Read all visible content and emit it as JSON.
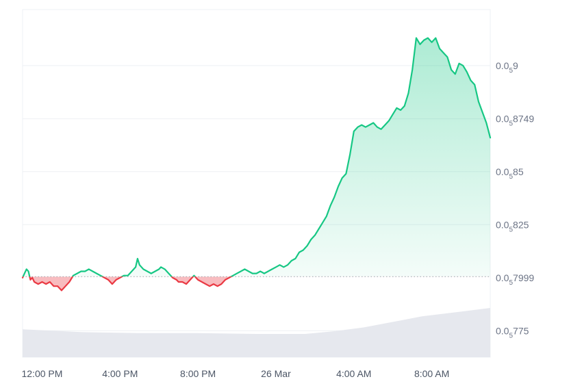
{
  "chart_data": {
    "type": "line",
    "baseline": 0.8005,
    "ylim": [
      0.7625,
      0.9264
    ],
    "xlim": [
      11.0,
      35.0
    ],
    "y_ticks": [
      {
        "value": 0.775,
        "lead": "0.0",
        "sub": "5",
        "tail": "775"
      },
      {
        "value": 0.7999,
        "lead": "0.0",
        "sub": "5",
        "tail": "7999"
      },
      {
        "value": 0.825,
        "lead": "0.0",
        "sub": "5",
        "tail": "825"
      },
      {
        "value": 0.85,
        "lead": "0.0",
        "sub": "5",
        "tail": "85"
      },
      {
        "value": 0.8749,
        "lead": "0.0",
        "sub": "5",
        "tail": "8749"
      },
      {
        "value": 0.9,
        "lead": "0.0",
        "sub": "5",
        "tail": "9"
      }
    ],
    "x_ticks": [
      {
        "label": "12:00 PM",
        "hour": 12
      },
      {
        "label": "4:00 PM",
        "hour": 16
      },
      {
        "label": "8:00 PM",
        "hour": 20
      },
      {
        "label": "26 Mar",
        "hour": 24
      },
      {
        "label": "4:00 AM",
        "hour": 28
      },
      {
        "label": "8:00 AM",
        "hour": 32
      }
    ],
    "x_unit": "hours (11 = 11:00 AM on 25 Mar, 24 = 26 Mar 00:00)",
    "price": [
      [
        11.0,
        0.8
      ],
      [
        11.1,
        0.802
      ],
      [
        11.2,
        0.804
      ],
      [
        11.3,
        0.803
      ],
      [
        11.4,
        0.799
      ],
      [
        11.5,
        0.8
      ],
      [
        11.6,
        0.798
      ],
      [
        11.8,
        0.797
      ],
      [
        12.0,
        0.798
      ],
      [
        12.2,
        0.797
      ],
      [
        12.4,
        0.798
      ],
      [
        12.6,
        0.796
      ],
      [
        12.8,
        0.796
      ],
      [
        13.0,
        0.794
      ],
      [
        13.1,
        0.795
      ],
      [
        13.2,
        0.796
      ],
      [
        13.4,
        0.798
      ],
      [
        13.6,
        0.801
      ],
      [
        13.8,
        0.802
      ],
      [
        14.0,
        0.803
      ],
      [
        14.2,
        0.803
      ],
      [
        14.4,
        0.804
      ],
      [
        14.6,
        0.803
      ],
      [
        14.8,
        0.802
      ],
      [
        15.0,
        0.801
      ],
      [
        15.2,
        0.8
      ],
      [
        15.4,
        0.799
      ],
      [
        15.6,
        0.797
      ],
      [
        15.8,
        0.799
      ],
      [
        16.0,
        0.8
      ],
      [
        16.2,
        0.801
      ],
      [
        16.4,
        0.801
      ],
      [
        16.6,
        0.803
      ],
      [
        16.8,
        0.805
      ],
      [
        16.9,
        0.809
      ],
      [
        17.0,
        0.806
      ],
      [
        17.2,
        0.804
      ],
      [
        17.4,
        0.803
      ],
      [
        17.6,
        0.802
      ],
      [
        17.8,
        0.803
      ],
      [
        18.0,
        0.804
      ],
      [
        18.1,
        0.805
      ],
      [
        18.3,
        0.804
      ],
      [
        18.5,
        0.802
      ],
      [
        18.7,
        0.8
      ],
      [
        18.9,
        0.799
      ],
      [
        19.0,
        0.798
      ],
      [
        19.2,
        0.798
      ],
      [
        19.4,
        0.797
      ],
      [
        19.6,
        0.799
      ],
      [
        19.8,
        0.801
      ],
      [
        20.0,
        0.799
      ],
      [
        20.2,
        0.798
      ],
      [
        20.4,
        0.797
      ],
      [
        20.6,
        0.796
      ],
      [
        20.8,
        0.797
      ],
      [
        21.0,
        0.796
      ],
      [
        21.2,
        0.797
      ],
      [
        21.4,
        0.799
      ],
      [
        21.6,
        0.8
      ],
      [
        21.8,
        0.801
      ],
      [
        22.0,
        0.802
      ],
      [
        22.2,
        0.803
      ],
      [
        22.4,
        0.804
      ],
      [
        22.6,
        0.803
      ],
      [
        22.8,
        0.802
      ],
      [
        23.0,
        0.802
      ],
      [
        23.2,
        0.803
      ],
      [
        23.4,
        0.802
      ],
      [
        23.6,
        0.803
      ],
      [
        23.8,
        0.804
      ],
      [
        24.0,
        0.805
      ],
      [
        24.2,
        0.806
      ],
      [
        24.4,
        0.805
      ],
      [
        24.6,
        0.806
      ],
      [
        24.8,
        0.808
      ],
      [
        25.0,
        0.809
      ],
      [
        25.2,
        0.812
      ],
      [
        25.4,
        0.813
      ],
      [
        25.6,
        0.815
      ],
      [
        25.8,
        0.818
      ],
      [
        26.0,
        0.82
      ],
      [
        26.2,
        0.823
      ],
      [
        26.4,
        0.826
      ],
      [
        26.6,
        0.829
      ],
      [
        26.8,
        0.834
      ],
      [
        27.0,
        0.838
      ],
      [
        27.2,
        0.843
      ],
      [
        27.4,
        0.847
      ],
      [
        27.6,
        0.849
      ],
      [
        27.8,
        0.858
      ],
      [
        28.0,
        0.869
      ],
      [
        28.2,
        0.871
      ],
      [
        28.4,
        0.872
      ],
      [
        28.6,
        0.871
      ],
      [
        28.8,
        0.872
      ],
      [
        29.0,
        0.873
      ],
      [
        29.2,
        0.871
      ],
      [
        29.4,
        0.87
      ],
      [
        29.6,
        0.872
      ],
      [
        29.8,
        0.874
      ],
      [
        30.0,
        0.877
      ],
      [
        30.2,
        0.88
      ],
      [
        30.4,
        0.879
      ],
      [
        30.6,
        0.881
      ],
      [
        30.8,
        0.887
      ],
      [
        31.0,
        0.898
      ],
      [
        31.2,
        0.913
      ],
      [
        31.4,
        0.91
      ],
      [
        31.6,
        0.912
      ],
      [
        31.8,
        0.913
      ],
      [
        32.0,
        0.911
      ],
      [
        32.2,
        0.913
      ],
      [
        32.4,
        0.908
      ],
      [
        32.6,
        0.906
      ],
      [
        32.8,
        0.904
      ],
      [
        33.0,
        0.898
      ],
      [
        33.2,
        0.896
      ],
      [
        33.4,
        0.901
      ],
      [
        33.6,
        0.9
      ],
      [
        33.8,
        0.897
      ],
      [
        34.0,
        0.893
      ],
      [
        34.2,
        0.891
      ],
      [
        34.4,
        0.883
      ],
      [
        34.6,
        0.878
      ],
      [
        34.8,
        0.873
      ],
      [
        35.0,
        0.866
      ]
    ],
    "volume": [
      [
        11.0,
        0.3
      ],
      [
        14.0,
        0.27
      ],
      [
        17.0,
        0.26
      ],
      [
        20.0,
        0.26
      ],
      [
        23.0,
        0.25
      ],
      [
        24.0,
        0.25
      ],
      [
        25.5,
        0.25
      ],
      [
        27.0,
        0.28
      ],
      [
        28.5,
        0.32
      ],
      [
        30.5,
        0.4
      ],
      [
        31.5,
        0.44
      ],
      [
        33.5,
        0.49
      ],
      [
        35.0,
        0.53
      ]
    ],
    "colors": {
      "up": "#16c784",
      "down": "#ea3943",
      "grid": "#eef0f4",
      "baseline": "#9aa1ac",
      "volume": "#e6e8ee"
    },
    "grid": true
  }
}
